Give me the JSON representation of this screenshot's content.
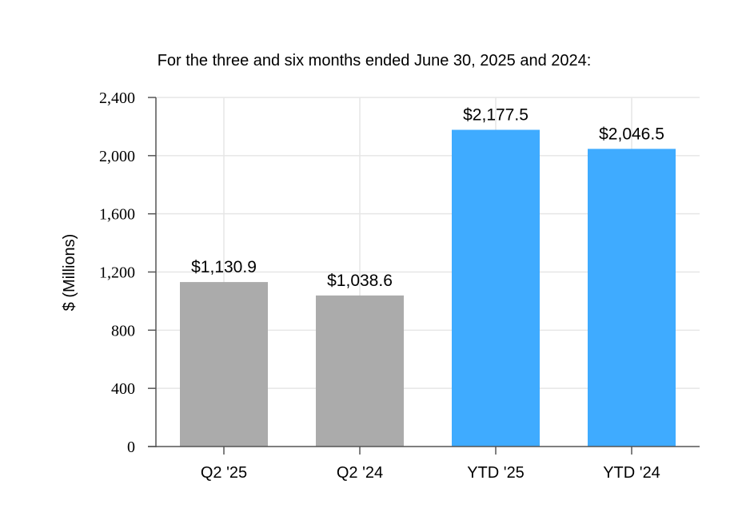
{
  "chart_data": {
    "type": "bar",
    "title": "For the three and six months ended June 30, 2025 and 2024:",
    "ylabel": "$ (Millions)",
    "xlabel": "",
    "ylim": [
      0,
      2400
    ],
    "yticks": [
      0,
      400,
      800,
      1200,
      1600,
      2000,
      2400
    ],
    "ytick_labels": [
      "0",
      "400",
      "800",
      "1,200",
      "1,600",
      "2,000",
      "2,400"
    ],
    "categories": [
      "Q2 '25",
      "Q2 '24",
      "YTD '25",
      "YTD '24"
    ],
    "values": [
      1130.9,
      1038.6,
      2177.5,
      2046.5
    ],
    "data_labels": [
      "$1,130.9",
      "$1,038.6",
      "$2,177.5",
      "$2,046.5"
    ],
    "colors": [
      "#ababab",
      "#ababab",
      "#3fabff",
      "#3fabff"
    ],
    "grid": true,
    "legend": "none"
  }
}
